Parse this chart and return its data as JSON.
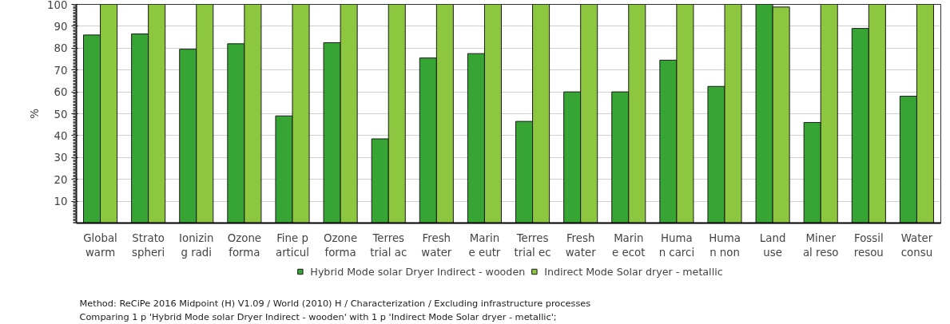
{
  "chart_data": {
    "type": "bar",
    "ylabel": "%",
    "categories": [
      "Global\nwarm",
      "Strato\nspheri",
      "Ionizin\ng radi",
      "Ozone\nforma",
      "Fine p\narticul",
      "Ozone\nforma",
      "Terres\ntrial ac",
      "Fresh\nwater",
      "Marin\ne eutr",
      "Terres\ntrial ec",
      "Fresh\nwater",
      "Marin\ne ecot",
      "Huma\nn carci",
      "Huma\nn non",
      "Land\nuse",
      "Miner\nal reso",
      "Fossil\nresou",
      "Water\nconsu"
    ],
    "series": [
      {
        "name": "Hybrid Mode solar Dryer Indirect - wooden",
        "color": "#36a534",
        "values": [
          86,
          86.5,
          79.5,
          82,
          49,
          82.5,
          38.5,
          75.5,
          77.5,
          46.5,
          60,
          60,
          74.5,
          62.5,
          100,
          46,
          89,
          58
        ]
      },
      {
        "name": "Indirect Mode Solar dryer - metallic",
        "color": "#8dc63f",
        "values": [
          100,
          100,
          100,
          100,
          100,
          100,
          100,
          100,
          100,
          100,
          100,
          100,
          100,
          100,
          98.8,
          100,
          100,
          100
        ]
      }
    ],
    "ylim": [
      0,
      100
    ],
    "yticks": [
      10,
      20,
      30,
      40,
      50,
      60,
      70,
      80,
      90,
      100
    ],
    "grid": "y",
    "legend": "bottom",
    "annotations": [
      "Method: ReCiPe 2016 Midpoint (H) V1.09 / World (2010) H / Characterization / Excluding infrastructure processes",
      "Comparing 1 p 'Hybrid Mode solar Dryer Indirect - wooden' with 1 p 'Indirect Mode Solar dryer - metallic';"
    ]
  }
}
